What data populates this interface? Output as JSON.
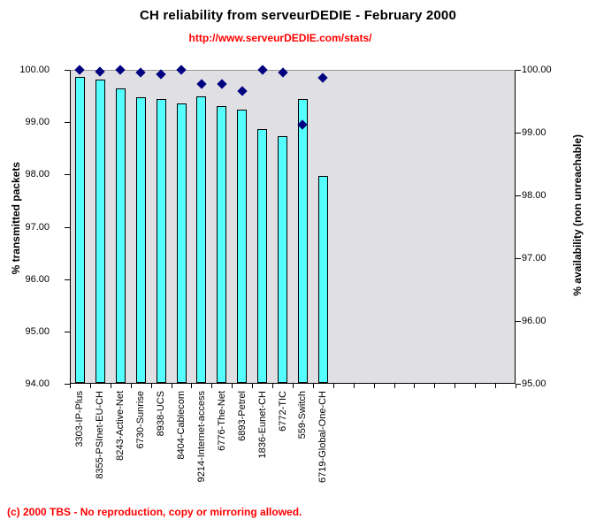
{
  "chart_data": {
    "type": "bar",
    "title": "CH reliability from serveurDEDIE - February 2000",
    "subtitle_url": "http://www.serveurDEDIE.com/stats/",
    "categories": [
      "3303-IP-Plus",
      "8355-PSInet-EU-CH",
      "8243-Active-Net",
      "6730-Sunrise",
      "8938-UCS",
      "8404-Cablecom",
      "9214-Internet-access",
      "6776-The-Net",
      "6893-Petrel",
      "1836-Eunet-CH",
      "6772-TIC",
      "559-Switch",
      "6719-Global-One-CH"
    ],
    "series": [
      {
        "name": "% transmitted packets",
        "type": "bar",
        "axis": "left",
        "values": [
          99.86,
          99.81,
          99.65,
          99.47,
          99.45,
          99.36,
          99.49,
          99.31,
          99.24,
          98.86,
          98.73,
          99.45,
          97.98
        ]
      },
      {
        "name": "% availability (non unreachable)",
        "type": "scatter",
        "marker": "diamond",
        "axis": "right",
        "values": [
          100.0,
          99.97,
          100.0,
          99.96,
          99.93,
          100.0,
          99.77,
          99.77,
          99.66,
          100.0,
          99.96,
          99.13,
          99.87
        ]
      }
    ],
    "left_axis": {
      "label": "% transmitted packets",
      "min": 94,
      "max": 100,
      "tick_labels": [
        "100.00",
        "99.00",
        "98.00",
        "97.00",
        "96.00",
        "95.00",
        "94.00"
      ]
    },
    "right_axis": {
      "label": "% availability (non unreachable)",
      "min": 95,
      "max": 100,
      "tick_labels": [
        "100.00",
        "99.00",
        "98.00",
        "97.00",
        "96.00",
        "95.00"
      ]
    },
    "total_category_slots": 22,
    "grid": "top-line-only",
    "legend": "none",
    "colors": {
      "bar_fill": "#55FFFF",
      "bar_border": "#000000",
      "marker": "#000080",
      "plot_bg": "#E0E0E4",
      "axis_line": "#000000",
      "top_gridline": "#999999",
      "red_text": "#FF0000"
    }
  },
  "footer": {
    "text": "(c) 2000 TBS - No reproduction, copy or mirroring allowed."
  }
}
